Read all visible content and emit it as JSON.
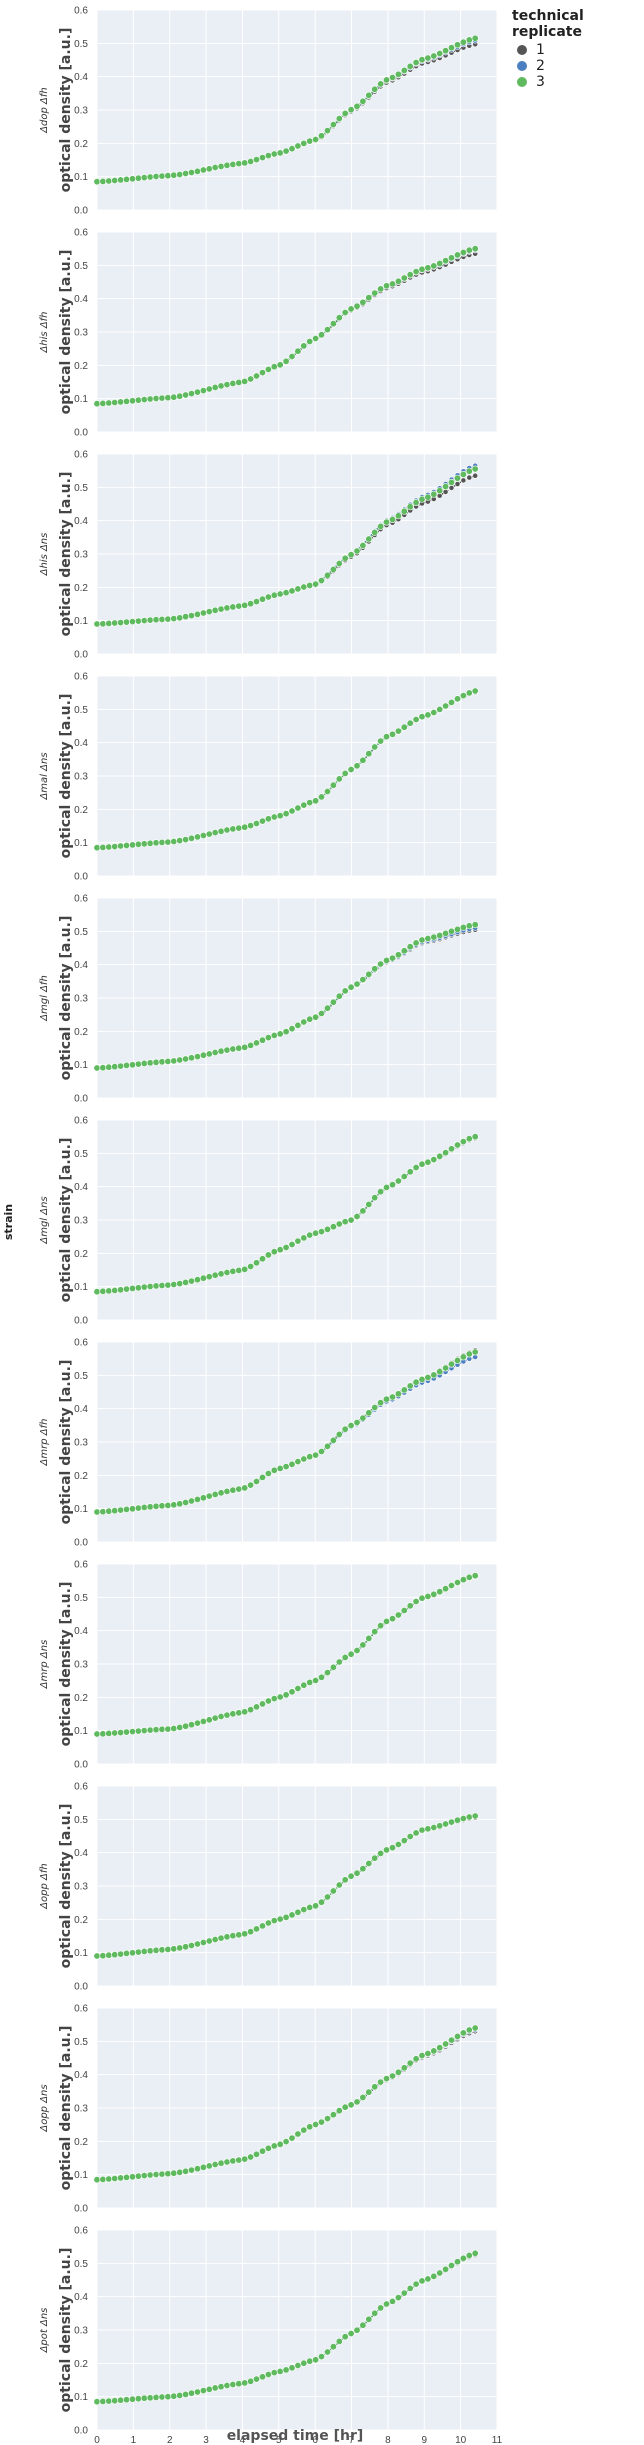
{
  "chart_data": {
    "type": "scatter",
    "facet_title": "strain",
    "xlabel": "elapsed time [hr]",
    "ylabel": "optical density [a.u.]",
    "xlim": [
      0,
      11
    ],
    "ylim": [
      0,
      0.6
    ],
    "x_ticks": [
      "0",
      "1",
      "2",
      "3",
      "4",
      "5",
      "6",
      "7",
      "8",
      "9",
      "10",
      "11"
    ],
    "y_ticks": [
      "0.0",
      "0.1",
      "0.2",
      "0.3",
      "0.4",
      "0.5",
      "0.6"
    ],
    "grid": true,
    "legend": {
      "title": "technical replicate",
      "placement": "top-right",
      "items": [
        {
          "label": "1",
          "color": "#555555"
        },
        {
          "label": "2",
          "color": "#4c7fbf"
        },
        {
          "label": "3",
          "color": "#5fba5f"
        }
      ]
    },
    "time_range_hr": [
      0,
      10.4
    ],
    "panels": [
      {
        "strain": "Δdop Δfh",
        "od_start": 0.085,
        "od_end": [
          0.497,
          0.508,
          0.515
        ],
        "key_points": [
          [
            0,
            0.085
          ],
          [
            2,
            0.103
          ],
          [
            4,
            0.14
          ],
          [
            5,
            0.17
          ],
          [
            6,
            0.21
          ],
          [
            7,
            0.3
          ],
          [
            8,
            0.39
          ],
          [
            9,
            0.45
          ],
          [
            10.4,
            0.51
          ]
        ]
      },
      {
        "strain": "Δhis Δfh",
        "od_start": 0.085,
        "od_end": [
          0.535,
          0.545,
          0.55
        ],
        "key_points": [
          [
            0,
            0.085
          ],
          [
            2,
            0.103
          ],
          [
            4,
            0.15
          ],
          [
            5,
            0.2
          ],
          [
            6,
            0.28
          ],
          [
            7,
            0.37
          ],
          [
            8,
            0.44
          ],
          [
            9,
            0.49
          ],
          [
            10.4,
            0.55
          ]
        ]
      },
      {
        "strain": "Δhis Δns",
        "od_start": 0.09,
        "od_end": [
          0.535,
          0.565,
          0.555
        ],
        "key_points": [
          [
            0,
            0.09
          ],
          [
            2,
            0.105
          ],
          [
            4,
            0.145
          ],
          [
            5,
            0.18
          ],
          [
            6,
            0.21
          ],
          [
            7,
            0.3
          ],
          [
            8,
            0.4
          ],
          [
            9,
            0.47
          ],
          [
            10.4,
            0.56
          ]
        ]
      },
      {
        "strain": "Δmal Δns",
        "od_start": 0.085,
        "od_end": [
          0.55,
          0.552,
          0.555
        ],
        "key_points": [
          [
            0,
            0.085
          ],
          [
            2,
            0.102
          ],
          [
            4,
            0.145
          ],
          [
            5,
            0.18
          ],
          [
            6,
            0.225
          ],
          [
            7,
            0.32
          ],
          [
            8,
            0.42
          ],
          [
            9,
            0.48
          ],
          [
            10.4,
            0.555
          ]
        ]
      },
      {
        "strain": "Δmgl Δfh",
        "od_start": 0.09,
        "od_end": [
          0.505,
          0.51,
          0.52
        ],
        "key_points": [
          [
            0,
            0.09
          ],
          [
            2,
            0.11
          ],
          [
            4,
            0.15
          ],
          [
            5,
            0.19
          ],
          [
            6,
            0.24
          ],
          [
            7,
            0.33
          ],
          [
            8,
            0.41
          ],
          [
            9,
            0.47
          ],
          [
            10.4,
            0.51
          ]
        ]
      },
      {
        "strain": "Δmgl Δns",
        "od_start": 0.085,
        "od_end": [
          0.545,
          0.548,
          0.55
        ],
        "key_points": [
          [
            0,
            0.085
          ],
          [
            2,
            0.105
          ],
          [
            4,
            0.15
          ],
          [
            5,
            0.21
          ],
          [
            6,
            0.26
          ],
          [
            7,
            0.3
          ],
          [
            8,
            0.4
          ],
          [
            9,
            0.47
          ],
          [
            10.4,
            0.55
          ]
        ]
      },
      {
        "strain": "Δmrp Δfh",
        "od_start": 0.09,
        "od_end": [
          0.575,
          0.555,
          0.57
        ],
        "key_points": [
          [
            0,
            0.09
          ],
          [
            2,
            0.11
          ],
          [
            4,
            0.16
          ],
          [
            5,
            0.22
          ],
          [
            6,
            0.26
          ],
          [
            7,
            0.35
          ],
          [
            8,
            0.43
          ],
          [
            9,
            0.49
          ],
          [
            10.4,
            0.57
          ]
        ]
      },
      {
        "strain": "Δmrp Δns",
        "od_start": 0.09,
        "od_end": [
          0.56,
          0.562,
          0.565
        ],
        "key_points": [
          [
            0,
            0.09
          ],
          [
            2,
            0.105
          ],
          [
            4,
            0.155
          ],
          [
            5,
            0.2
          ],
          [
            6,
            0.25
          ],
          [
            7,
            0.33
          ],
          [
            8,
            0.43
          ],
          [
            9,
            0.5
          ],
          [
            10.4,
            0.565
          ]
        ]
      },
      {
        "strain": "Δopp Δfh",
        "od_start": 0.09,
        "od_end": [
          0.505,
          0.508,
          0.51
        ],
        "key_points": [
          [
            0,
            0.09
          ],
          [
            2,
            0.11
          ],
          [
            4,
            0.155
          ],
          [
            5,
            0.2
          ],
          [
            6,
            0.24
          ],
          [
            7,
            0.33
          ],
          [
            8,
            0.41
          ],
          [
            9,
            0.47
          ],
          [
            10.4,
            0.51
          ]
        ]
      },
      {
        "strain": "Δopp Δns",
        "od_start": 0.085,
        "od_end": [
          0.53,
          0.535,
          0.54
        ],
        "key_points": [
          [
            0,
            0.085
          ],
          [
            2,
            0.103
          ],
          [
            4,
            0.145
          ],
          [
            5,
            0.19
          ],
          [
            6,
            0.25
          ],
          [
            7,
            0.31
          ],
          [
            8,
            0.39
          ],
          [
            9,
            0.46
          ],
          [
            10.4,
            0.54
          ]
        ]
      },
      {
        "strain": "Δpot Δns",
        "od_start": 0.085,
        "od_end": [
          0.525,
          0.528,
          0.53
        ],
        "key_points": [
          [
            0,
            0.085
          ],
          [
            2,
            0.1
          ],
          [
            4,
            0.14
          ],
          [
            5,
            0.175
          ],
          [
            6,
            0.21
          ],
          [
            7,
            0.29
          ],
          [
            8,
            0.38
          ],
          [
            9,
            0.45
          ],
          [
            10.4,
            0.53
          ]
        ]
      }
    ]
  }
}
